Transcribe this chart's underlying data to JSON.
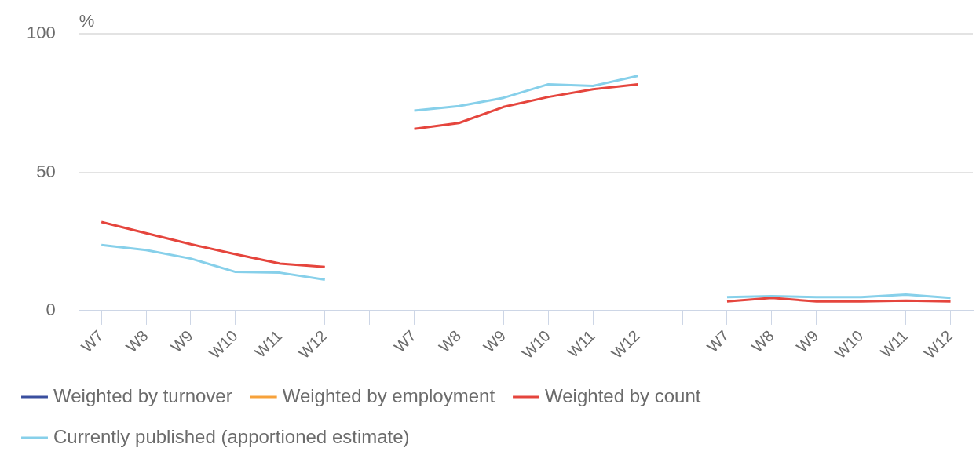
{
  "chart_data": {
    "type": "line",
    "ylabel": "%",
    "categories": [
      "W7",
      "W8",
      "W9",
      "W10",
      "W11",
      "W12",
      null,
      "W7",
      "W8",
      "W9",
      "W10",
      "W11",
      "W12",
      null,
      "W7",
      "W8",
      "W9",
      "W10",
      "W11",
      "W12"
    ],
    "series": [
      {
        "name": "Weighted by turnover",
        "color": "#3a4f9f",
        "values": [
          null,
          null,
          null,
          null,
          null,
          null,
          null,
          null,
          null,
          null,
          null,
          null,
          null,
          null,
          null,
          null,
          null,
          null,
          null,
          null
        ]
      },
      {
        "name": "Weighted by employment",
        "color": "#f7a23b",
        "values": [
          null,
          null,
          null,
          null,
          null,
          null,
          null,
          null,
          null,
          null,
          null,
          null,
          null,
          null,
          null,
          null,
          null,
          null,
          null,
          null
        ]
      },
      {
        "name": "Weighted by count",
        "color": "#e5453d",
        "values": [
          32,
          28,
          24,
          20.4,
          17,
          15.8,
          null,
          65.7,
          67.8,
          73.6,
          77.2,
          80,
          81.8,
          null,
          3.3,
          4.6,
          3.3,
          3.3,
          3.6,
          3.3
        ]
      },
      {
        "name": "Currently published (apportioned estimate)",
        "color": "#87d0ea",
        "values": [
          23.7,
          21.9,
          18.8,
          14,
          13.7,
          11.2,
          null,
          72.3,
          73.9,
          76.9,
          81.8,
          81.2,
          84.8,
          null,
          4.9,
          5.2,
          4.9,
          4.9,
          5.8,
          4.6
        ]
      }
    ],
    "ylim": [
      0,
      100
    ],
    "yticks": [
      0,
      50,
      100
    ],
    "grid": "y",
    "legend": "bottom",
    "marker": "none",
    "line_style": "solid"
  }
}
